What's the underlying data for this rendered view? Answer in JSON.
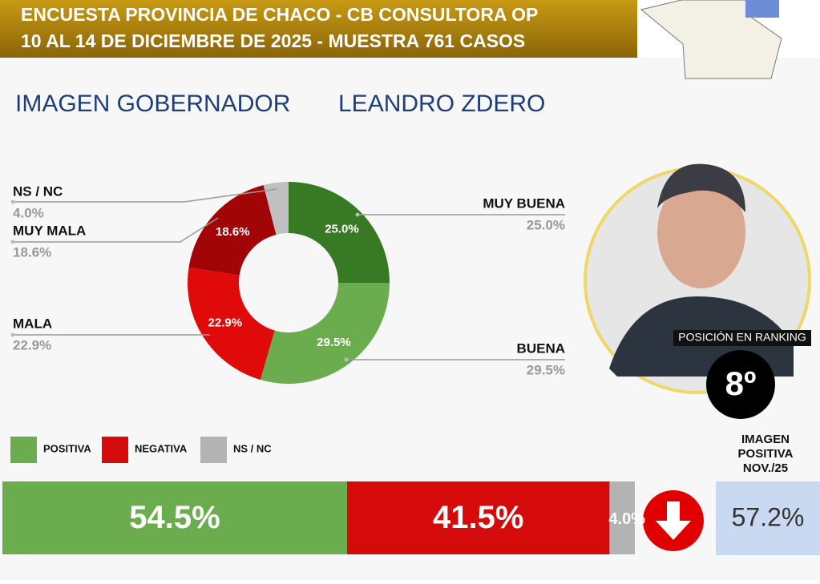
{
  "header": {
    "line1": "ENCUESTA PROVINCIA DE CHACO - CB CONSULTORA OP",
    "line2": "10 AL 14 DE DICIEMBRE DE 2025 - MUESTRA 761 CASOS"
  },
  "title": "IMAGEN GOBERNADOR",
  "person": "LEANDRO ZDERO",
  "chart_data": [
    {
      "type": "donut",
      "categories": [
        "MUY BUENA",
        "BUENA",
        "MALA",
        "MUY MALA",
        "NS / NC"
      ],
      "values": [
        25.0,
        29.5,
        22.9,
        18.6,
        4.0
      ],
      "value_labels": [
        "25.0%",
        "29.5%",
        "22.9%",
        "18.6%",
        "4.0%"
      ],
      "colors": [
        "#387a23",
        "#6aac4e",
        "#e00a0a",
        "#a10505",
        "#c0c0c0"
      ]
    },
    {
      "type": "bar",
      "stacked": true,
      "orientation": "horizontal",
      "categories": [
        null
      ],
      "series": [
        {
          "name": "POSITIVA",
          "color": "#6aac4e",
          "values": [
            54.5
          ],
          "value_labels": [
            "54.5%"
          ]
        },
        {
          "name": "NEGATIVA",
          "color": "#d50b0b",
          "values": [
            41.5
          ],
          "value_labels": [
            "41.5%"
          ]
        },
        {
          "name": "NS / NC",
          "color": "#b3b3b3",
          "values": [
            4.0
          ],
          "value_labels": [
            "4.0%"
          ]
        }
      ]
    }
  ],
  "ranking": {
    "label": "POSICIÓN EN RANKING",
    "value": "8º"
  },
  "previous": {
    "label_lines": [
      "IMAGEN",
      "POSITIVA",
      "NOV./25"
    ],
    "value": "57.2%"
  }
}
